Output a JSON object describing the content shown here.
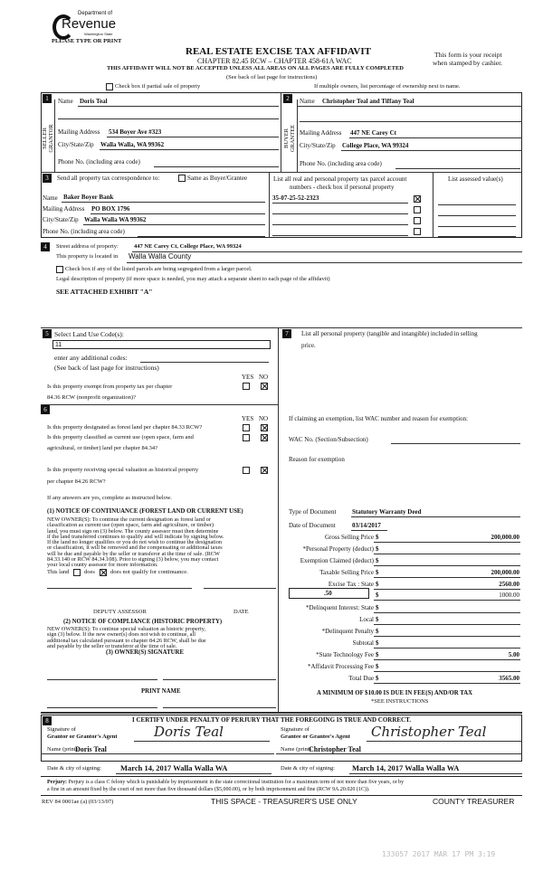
{
  "header": {
    "logo_dept": "Department of",
    "logo_name": "Revenue",
    "logo_state": "Washington State",
    "type_or_print": "PLEASE TYPE OR PRINT",
    "title": "REAL ESTATE EXCISE TAX AFFIDAVIT",
    "chapter": "CHAPTER 82.45 RCW – CHAPTER 458-61A WAC",
    "warning": "THIS AFFIDAVIT WILL NOT BE ACCEPTED UNLESS ALL AREAS ON ALL PAGES ARE FULLY COMPLETED",
    "see_back": "(See back of last page for instructions)",
    "receipt_line1": "This form is your receipt",
    "receipt_line2": "when stamped by cashier.",
    "partial_sale_label": "Check box if partial sale of property",
    "multiple_owners": "If multiple owners, list percentage of ownership next to name."
  },
  "seller": {
    "num": "1",
    "side_label": "SELLER GRANTOR",
    "name_label": "Name",
    "name": "Doris Teal",
    "mailing_label": "Mailing Address",
    "mailing": "534 Boyer Ave #323",
    "city_label": "City/State/Zip",
    "city": "Walla Walla, WA  99362",
    "phone_label": "Phone No. (including area code)"
  },
  "buyer": {
    "num": "2",
    "side_label": "BUYER GRANTEE",
    "name_label": "Name",
    "name": "Christopher Teal and Tiffany Teal",
    "mailing_label": "Mailing Address",
    "mailing": "447 NE Carey Ct",
    "city_label": "City/State/Zip",
    "city": "College Place, WA  99324",
    "phone_label": "Phone No. (including area code)"
  },
  "tax_correspondence": {
    "num": "3",
    "send_label": "Send all property tax correspondence to:",
    "same_label": "Same as Buyer/Grantee",
    "same_checked": false,
    "name_label": "Name",
    "name": "Baker Boyer Bank",
    "mailing_label": "Mailing Address",
    "mailing": "PO BOX 1796",
    "city_label": "City/State/Zip",
    "city": "Walla Walla WA 99362",
    "phone_label": "Phone No. (including area code)",
    "parcel_header1": "List all real and personal property tax parcel account",
    "parcel_header2": "numbers - check box if personal property",
    "parcels": [
      {
        "number": "35-07-25-52-2323",
        "checked": true
      },
      {
        "number": "",
        "checked": false
      },
      {
        "number": "",
        "checked": false
      },
      {
        "number": "",
        "checked": false
      }
    ],
    "assessed_header": "List assessed value(s)"
  },
  "property": {
    "num": "4",
    "street_label": "Street address of property:",
    "street": "447 NE Carey Ct, College Place, WA  99324",
    "located_label": "This property is located in",
    "county": "Walla Walla County",
    "segregated_label": "Check box if any of the listed parcels are being segregated from a larger parcel.",
    "legal_label": "Legal description of property (if more space is needed, you may attach a separate sheet to each page of the affidavit)",
    "legal": "SEE ATTACHED EXHIBIT \"A\""
  },
  "land_use": {
    "num": "5",
    "label": "Select Land Use Code(s):",
    "code": "11",
    "additional_label": "enter any additional codes:",
    "see_back": "(See back of last page for instructions)",
    "yes": "YES",
    "no": "NO",
    "exempt_q1": "Is this property exempt from property tax per chapter",
    "exempt_q2": "84.36 RCW (nonprofit organization)?",
    "exempt_answer": "NO"
  },
  "section6": {
    "num": "6",
    "yes": "YES",
    "no": "NO",
    "forest_q": "Is this property designated as forest land per chapter 84.33 RCW?",
    "current_q1": "Is this property classified as current use (open space, farm and",
    "current_q2": "agricultural, or timber) land per chapter 84.34?",
    "historic_q1": "Is this property receiving special valuation as historical property",
    "historic_q2": "per chapter 84.26 RCW?",
    "if_yes": "If any answers are yes, complete as instructed below.",
    "notice1_title": "(1) NOTICE OF CONTINUANCE (FOREST LAND OR CURRENT USE)",
    "notice1_lines": [
      "NEW OWNER(S): To continue the current designation as forest land or",
      "classification as current use (open space, farm and agriculture, or timber)",
      "land, you must sign on (3) below. The county assessor must then determine",
      "if the land transferred continues to qualify and will indicate by signing below.",
      "If the land no longer qualifies or you do not wish to continue the designation",
      "or classification, it will be removed and the compensating or additional taxes",
      "will be due and payable by the seller or transferor at the time of sale. (RCW",
      "84.33.140 or RCW 84.34.108). Prior to signing (3) below, you may contact",
      "your local county assessor for more information."
    ],
    "this_land": "This land",
    "does": "does",
    "does_not": "does not  qualify for continuance.",
    "continuance": "does not",
    "deputy": "DEPUTY ASSESSOR",
    "date": "DATE",
    "notice2_title": "(2) NOTICE OF COMPLIANCE (HISTORIC PROPERTY)",
    "notice2_lines": [
      "NEW OWNER(S): To continue special valuation as historic property,",
      "sign (3) below. If the new owner(s) does not wish to continue, all",
      "additional tax calculated pursuant to chapter 84.26 RCW, shall be due",
      "and payable by the seller or transferor at the time of sale."
    ],
    "owner_sig": "(3) OWNER(S) SIGNATURE",
    "print_name": "PRINT NAME"
  },
  "section7": {
    "num": "7",
    "line1": "List all personal property (tangible and intangible) included in selling",
    "line2": "price.",
    "exemption_label": "If claiming an exemption, list WAC number and reason for exemption:",
    "wac_label": "WAC No. (Section/Subsection)",
    "reason_label": "Reason for exemption",
    "doc_type_label": "Type of Document",
    "doc_type": "Statutory Warranty Deed",
    "doc_date_label": "Date of Document",
    "doc_date": "03/14/2017",
    "local_rate": ".50",
    "rows": [
      {
        "label": "Gross Selling Price",
        "value": "200,000.00"
      },
      {
        "label": "*Personal Property (deduct)",
        "value": ""
      },
      {
        "label": "Exemption Claimed (deduct)",
        "value": ""
      },
      {
        "label": "Taxable Selling Price",
        "value": "200,000.00"
      },
      {
        "label": "Excise Tax : State",
        "value": "2560.00"
      },
      {
        "label": "",
        "value": "1000.00"
      },
      {
        "label": "*Delinquent Interest:  State",
        "value": ""
      },
      {
        "label": "Local",
        "value": ""
      },
      {
        "label": "*Delinquent Penalty",
        "value": ""
      },
      {
        "label": "Subtotal",
        "value": ""
      },
      {
        "label": "*State Technology Fee",
        "value": "5.00"
      },
      {
        "label": "*Affidavit Processing Fee",
        "value": ""
      },
      {
        "label": "Total Due",
        "value": "3565.00"
      }
    ],
    "dollar": "$",
    "minimum": "A MINIMUM OF $10.00 IS DUE IN FEE(S) AND/OR TAX",
    "see_instructions": "*SEE INSTRUCTIONS"
  },
  "certify": {
    "num": "8",
    "statement": "I CERTIFY UNDER PENALTY OF PERJURY THAT THE FOREGOING IS TRUE AND CORRECT.",
    "grantor_sig_label1": "Signature of",
    "grantor_sig_label2": "Grantor or Grantor's Agent",
    "grantor_signature": "Doris Teal",
    "grantee_sig_label1": "Signature of",
    "grantee_sig_label2": "Grantee or Grantee's Agent",
    "grantee_signature": "Christopher Teal",
    "name_print_label": "Name (print)",
    "grantor_name": "Doris Teal",
    "grantee_name": "Christopher Teal",
    "date_city_label": "Date & city of signing:",
    "grantor_date": "March 14, 2017  Walla Walla WA",
    "grantee_date": "March 14, 2017  Walla Walla WA",
    "perjury_title": "Perjury:",
    "perjury_line1": "Perjury is a class C felony which is punishable by imprisonment in the state correctional institution for a maximum term of not more than five years, or by",
    "perjury_line2": "a fine in an amount fixed by the court of not more than five thousand dollars ($5,000.00), or by both imprisonment and fine (RCW 9A.20.020 (1C))."
  },
  "footer": {
    "rev": "REV 84 0001ae (a) (03/13/07)",
    "treasurer_space": "THIS SPACE - TREASURER'S USE ONLY",
    "county_treasurer": "COUNTY TREASURER",
    "stamp": "133057 2017 MAR 17 PM 3:19"
  }
}
